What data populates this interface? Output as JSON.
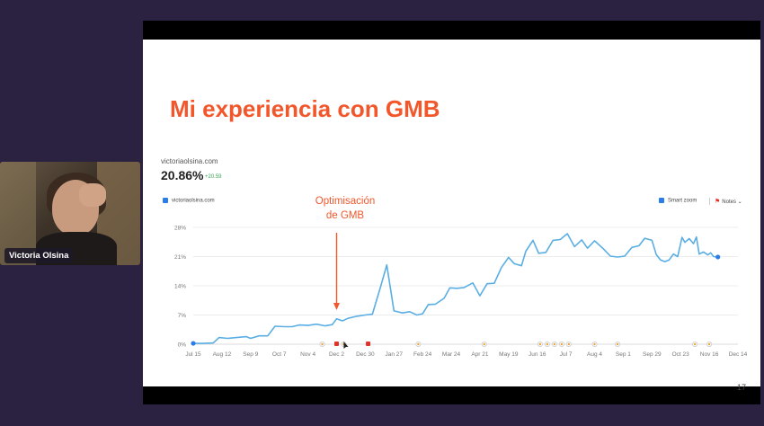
{
  "meeting": {
    "participant_name": "Victoria Olsina"
  },
  "slide": {
    "title": "Mi experiencia con GMB",
    "page_number": "17",
    "annotation_line1": "Optimisación",
    "annotation_line2": "de GMB",
    "title_color": "#f2572b"
  },
  "widget": {
    "domain": "victoriaolsina.com",
    "value": "20.86%",
    "delta": "+20.59",
    "legend_series": "victoriaolsina.com",
    "smart_zoom_label": "Smart zoom",
    "notes_label": "Notes",
    "notes_caret": "⌄",
    "line_color": "#5aaee3",
    "delta_color": "#3aa657"
  },
  "chart_data": {
    "type": "line",
    "title": "",
    "xlabel": "",
    "ylabel": "",
    "ylim": [
      0,
      28
    ],
    "y_ticks": [
      "0%",
      "7%",
      "14%",
      "21%",
      "28%"
    ],
    "x_ticks": [
      "Jul 15",
      "Aug 12",
      "Sep 9",
      "Oct 7",
      "Nov 4",
      "Dec 2",
      "Dec 30",
      "Jan 27",
      "Feb 24",
      "Mar 24",
      "Apr 21",
      "May 19",
      "Jun 16",
      "Jul 7",
      "Aug 4",
      "Sep 1",
      "Sep 29",
      "Oct 23",
      "Nov 16",
      "Dec 14"
    ],
    "grid": true,
    "series": [
      {
        "name": "victoriaolsina.com",
        "points": [
          [
            0,
            0.2
          ],
          [
            0.35,
            0.2
          ],
          [
            0.7,
            0.3
          ],
          [
            0.9,
            1.6
          ],
          [
            1.2,
            1.4
          ],
          [
            1.5,
            1.6
          ],
          [
            1.85,
            1.8
          ],
          [
            2.0,
            1.4
          ],
          [
            2.3,
            2.0
          ],
          [
            2.6,
            2.0
          ],
          [
            2.85,
            4.3
          ],
          [
            3.2,
            4.2
          ],
          [
            3.45,
            4.2
          ],
          [
            3.7,
            4.6
          ],
          [
            4.0,
            4.5
          ],
          [
            4.3,
            4.8
          ],
          [
            4.6,
            4.4
          ],
          [
            4.85,
            4.7
          ],
          [
            5.0,
            6.1
          ],
          [
            5.2,
            5.6
          ],
          [
            5.4,
            6.2
          ],
          [
            5.7,
            6.7
          ],
          [
            6.0,
            7.0
          ],
          [
            6.25,
            7.2
          ],
          [
            6.55,
            14.1
          ],
          [
            6.75,
            19.0
          ],
          [
            7.0,
            8.0
          ],
          [
            7.3,
            7.5
          ],
          [
            7.55,
            7.8
          ],
          [
            7.8,
            7.0
          ],
          [
            8.0,
            7.3
          ],
          [
            8.2,
            9.5
          ],
          [
            8.45,
            9.6
          ],
          [
            8.75,
            11.0
          ],
          [
            8.95,
            13.5
          ],
          [
            9.2,
            13.4
          ],
          [
            9.45,
            13.6
          ],
          [
            9.75,
            14.7
          ],
          [
            10.0,
            11.6
          ],
          [
            10.25,
            14.5
          ],
          [
            10.5,
            14.6
          ],
          [
            10.75,
            18.4
          ],
          [
            11.0,
            20.8
          ],
          [
            11.2,
            19.3
          ],
          [
            11.45,
            18.8
          ],
          [
            11.6,
            22.3
          ],
          [
            11.85,
            24.9
          ],
          [
            12.05,
            21.8
          ],
          [
            12.3,
            22.0
          ],
          [
            12.55,
            24.9
          ],
          [
            12.8,
            25.1
          ],
          [
            13.05,
            26.5
          ],
          [
            13.3,
            23.4
          ],
          [
            13.55,
            25.0
          ],
          [
            13.75,
            23.0
          ],
          [
            14.0,
            24.8
          ],
          [
            14.3,
            22.9
          ],
          [
            14.55,
            21.1
          ],
          [
            14.8,
            20.9
          ],
          [
            15.05,
            21.1
          ],
          [
            15.3,
            23.2
          ],
          [
            15.55,
            23.6
          ],
          [
            15.75,
            25.4
          ],
          [
            16.0,
            24.9
          ],
          [
            16.15,
            21.5
          ],
          [
            16.3,
            20.2
          ],
          [
            16.45,
            19.8
          ],
          [
            16.6,
            20.2
          ],
          [
            16.75,
            21.6
          ],
          [
            16.9,
            21.0
          ],
          [
            17.05,
            25.6
          ],
          [
            17.15,
            24.4
          ],
          [
            17.3,
            25.3
          ],
          [
            17.45,
            24.1
          ],
          [
            17.55,
            25.7
          ],
          [
            17.65,
            21.6
          ],
          [
            17.8,
            22.1
          ],
          [
            17.95,
            21.4
          ],
          [
            18.05,
            21.9
          ],
          [
            18.15,
            21.0
          ],
          [
            18.3,
            20.9
          ]
        ]
      }
    ]
  }
}
